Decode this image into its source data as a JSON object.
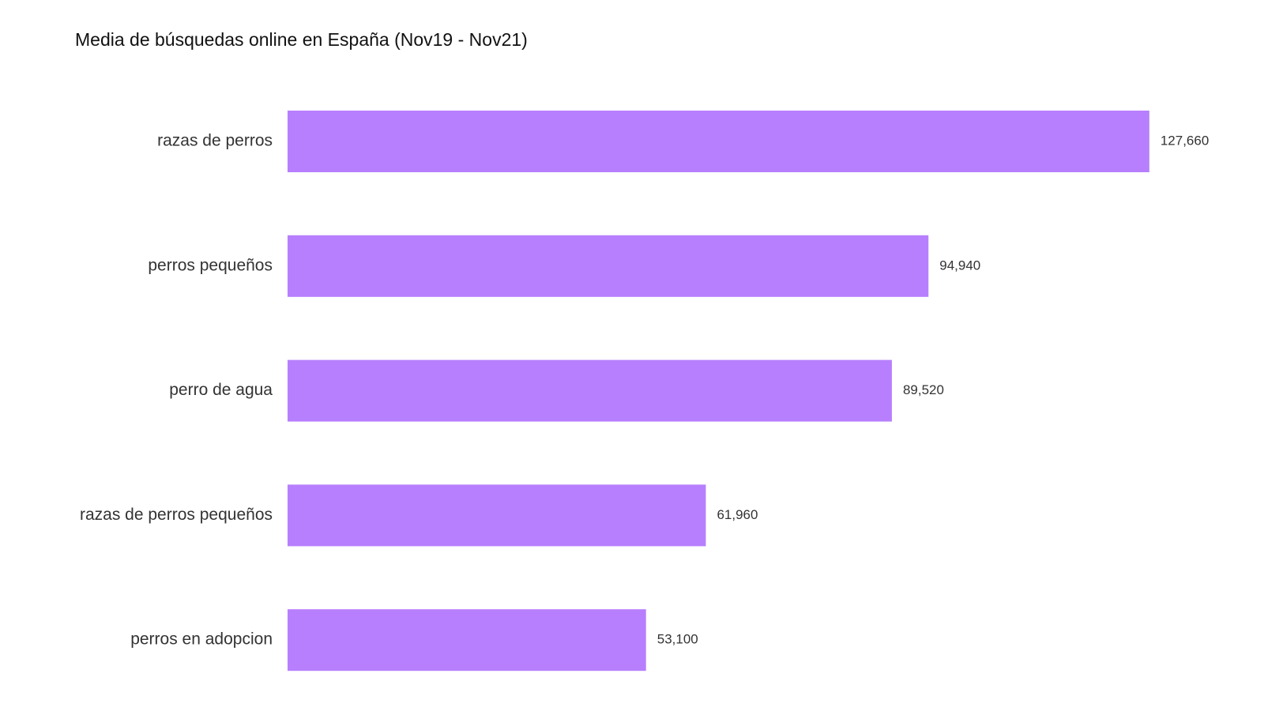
{
  "chart_data": {
    "type": "bar",
    "orientation": "horizontal",
    "subtitle": "Media de búsquedas online en España (Nov19 - Nov21)",
    "categories": [
      "razas de perros",
      "perros pequeños",
      "perro de agua",
      "razas de perros pequeños",
      "perros en adopcion"
    ],
    "values": [
      127660,
      94940,
      89520,
      61960,
      53100
    ],
    "value_labels": [
      "127,660",
      "94,940",
      "89,520",
      "61,960",
      "53,100"
    ],
    "color": "#b77ffd"
  }
}
